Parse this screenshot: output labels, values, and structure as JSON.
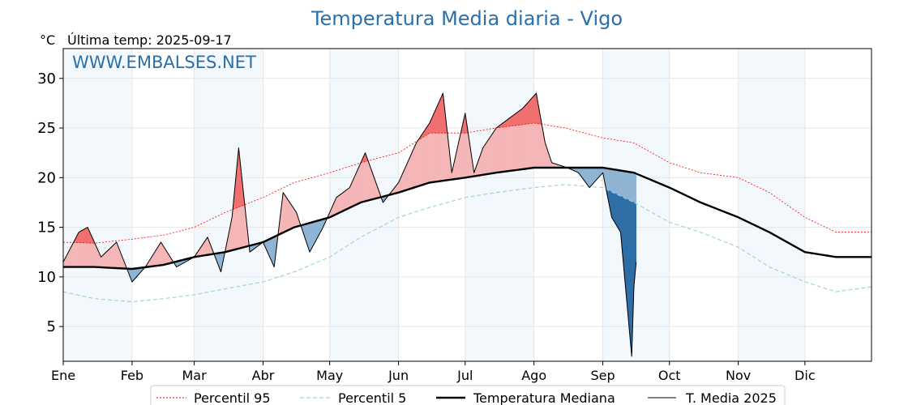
{
  "chart_data": {
    "type": "line",
    "title": "Temperatura Media diaria - Vigo",
    "unit_label": "°C",
    "subtitle": "Última temp: 2025-09-17",
    "watermark": "WWW.EMBALSES.NET",
    "x_tick_labels": [
      "Ene",
      "Feb",
      "Mar",
      "Abr",
      "May",
      "Jun",
      "Jul",
      "Ago",
      "Sep",
      "Oct",
      "Nov",
      "Dic"
    ],
    "ylim": [
      1.5,
      33
    ],
    "y_ticks": [
      5,
      10,
      15,
      20,
      25,
      30
    ],
    "grid": true,
    "legend_position": "bottom",
    "colors": {
      "p95": "#ff0000",
      "p5": "#9ccfe0",
      "median": "#000000",
      "t2025": "#000000",
      "above_fill": "#f4b6b6",
      "above_extreme_fill": "#f07070",
      "below_fill": "#8fb4d4",
      "below_extreme_fill": "#2f6ea6",
      "month_band": "#f3f8fc",
      "title": "#2a6fa8"
    },
    "series": [
      {
        "name": "Percentil 95",
        "key": "p95",
        "x_day": [
          1,
          15,
          32,
          46,
          60,
          74,
          91,
          105,
          121,
          135,
          152,
          166,
          182,
          196,
          213,
          227,
          244,
          258,
          274,
          288,
          305,
          319,
          335,
          349,
          365
        ],
        "values": [
          13.5,
          13.4,
          13.8,
          14.2,
          15.0,
          16.5,
          18.0,
          19.5,
          20.5,
          21.5,
          22.5,
          24.5,
          24.5,
          25.0,
          25.5,
          25.0,
          24.0,
          23.5,
          21.5,
          20.5,
          20.0,
          18.5,
          16.0,
          14.5,
          14.5
        ]
      },
      {
        "name": "Percentil 5",
        "key": "p5",
        "x_day": [
          1,
          15,
          32,
          46,
          60,
          74,
          91,
          105,
          121,
          135,
          152,
          166,
          182,
          196,
          213,
          227,
          244,
          258,
          274,
          288,
          305,
          319,
          335,
          349,
          365
        ],
        "values": [
          8.5,
          7.8,
          7.5,
          7.8,
          8.2,
          8.8,
          9.5,
          10.5,
          12.0,
          14.0,
          16.0,
          17.0,
          18.0,
          18.5,
          19.0,
          19.3,
          19.0,
          17.5,
          15.5,
          14.5,
          13.0,
          11.0,
          9.5,
          8.5,
          9.0
        ]
      },
      {
        "name": "Temperatura Mediana",
        "key": "median",
        "x_day": [
          1,
          15,
          32,
          46,
          60,
          74,
          91,
          105,
          121,
          135,
          152,
          166,
          182,
          196,
          213,
          227,
          244,
          258,
          274,
          288,
          305,
          319,
          335,
          349,
          365
        ],
        "values": [
          11.0,
          11.0,
          10.8,
          11.2,
          12.0,
          12.5,
          13.5,
          15.0,
          16.0,
          17.5,
          18.5,
          19.5,
          20.0,
          20.5,
          21.0,
          21.0,
          21.0,
          20.5,
          19.0,
          17.5,
          16.0,
          14.5,
          12.5,
          12.0,
          12.0
        ]
      },
      {
        "name": "T. Media 2025",
        "key": "t2025",
        "x_day": [
          1,
          8,
          12,
          18,
          25,
          32,
          38,
          45,
          52,
          60,
          66,
          72,
          77,
          80,
          85,
          91,
          96,
          100,
          106,
          112,
          118,
          124,
          130,
          137,
          141,
          145,
          152,
          160,
          166,
          172,
          176,
          182,
          186,
          190,
          196,
          202,
          208,
          214,
          218,
          221,
          228,
          233,
          238,
          244,
          248,
          252,
          255,
          257,
          258,
          259
        ],
        "values": [
          11.5,
          14.5,
          15.0,
          12.0,
          13.5,
          9.5,
          11.0,
          13.5,
          11.0,
          12.0,
          14.0,
          10.5,
          16.0,
          23.0,
          12.5,
          13.5,
          11.0,
          18.5,
          16.5,
          12.5,
          15.0,
          18.0,
          19.0,
          22.5,
          20.0,
          17.5,
          19.5,
          23.5,
          25.5,
          28.5,
          20.5,
          26.5,
          20.5,
          23.0,
          25.0,
          26.0,
          27.0,
          28.5,
          23.5,
          21.5,
          21.0,
          20.5,
          19.0,
          20.5,
          16.0,
          14.5,
          7.0,
          2.0,
          9.0,
          11.5
        ]
      }
    ]
  },
  "legend": {
    "p95_label": "Percentil 95",
    "p5_label": "Percentil 5",
    "median_label": "Temperatura Mediana",
    "t2025_label": "T. Media 2025"
  }
}
